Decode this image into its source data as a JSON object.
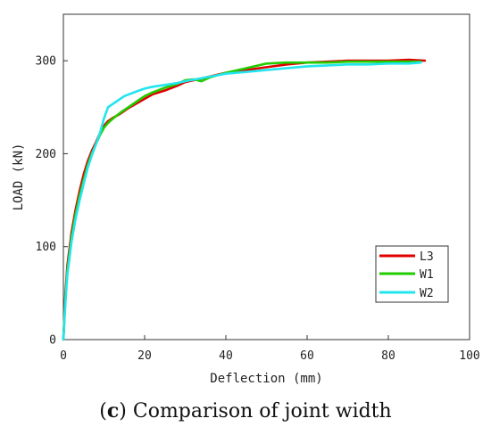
{
  "caption": {
    "letter": "c",
    "text": "Comparison of joint width"
  },
  "chart_data": {
    "type": "line",
    "xlabel": "Deflection (mm)",
    "ylabel": "LOAD (kN)",
    "xlim": [
      0,
      100
    ],
    "ylim": [
      0,
      350
    ],
    "xticks": [
      0,
      20,
      40,
      60,
      80,
      100
    ],
    "yticks": [
      0,
      100,
      200,
      300
    ],
    "grid": false,
    "legend_position": "bottom-right",
    "series": [
      {
        "name": "L3",
        "color": "#e00000",
        "x": [
          0,
          0.5,
          1,
          2,
          3,
          4,
          5,
          6,
          7,
          8,
          9,
          10,
          11,
          12,
          14,
          16,
          18,
          20,
          22,
          25,
          28,
          30,
          33,
          36,
          40,
          45,
          50,
          55,
          60,
          65,
          70,
          75,
          80,
          85,
          89
        ],
        "y": [
          0,
          50,
          80,
          115,
          140,
          160,
          178,
          192,
          203,
          212,
          222,
          230,
          235,
          238,
          243,
          249,
          254,
          259,
          264,
          268,
          273,
          277,
          280,
          283,
          287,
          290,
          293,
          296,
          298,
          299,
          300,
          300,
          300,
          301,
          300
        ]
      },
      {
        "name": "W1",
        "color": "#22cc00",
        "x": [
          0,
          0.5,
          1,
          2,
          3,
          4,
          5,
          6,
          7,
          8,
          9,
          10,
          11,
          12,
          14,
          16,
          18,
          20,
          22,
          25,
          28,
          30,
          32,
          34,
          36,
          40,
          45,
          50,
          55,
          60,
          65,
          70,
          75,
          80,
          85,
          88
        ],
        "y": [
          0,
          45,
          75,
          110,
          135,
          155,
          172,
          188,
          200,
          210,
          220,
          228,
          233,
          237,
          244,
          250,
          256,
          262,
          266,
          271,
          275,
          279,
          280,
          278,
          282,
          287,
          292,
          297,
          298,
          298,
          298,
          299,
          299,
          299,
          299,
          299
        ]
      },
      {
        "name": "W2",
        "color": "#22e5ee",
        "x": [
          0,
          0.5,
          1,
          2,
          3,
          4,
          5,
          6,
          7,
          8,
          9,
          10,
          11,
          13,
          15,
          18,
          20,
          22,
          25,
          28,
          30,
          35,
          40,
          45,
          50,
          55,
          60,
          65,
          70,
          75,
          80,
          85,
          88
        ],
        "y": [
          0,
          40,
          70,
          105,
          130,
          150,
          168,
          185,
          198,
          210,
          222,
          238,
          250,
          256,
          262,
          267,
          270,
          272,
          274,
          276,
          278,
          282,
          286,
          288,
          290,
          292,
          294,
          295,
          296,
          296,
          297,
          297,
          298
        ]
      }
    ]
  }
}
